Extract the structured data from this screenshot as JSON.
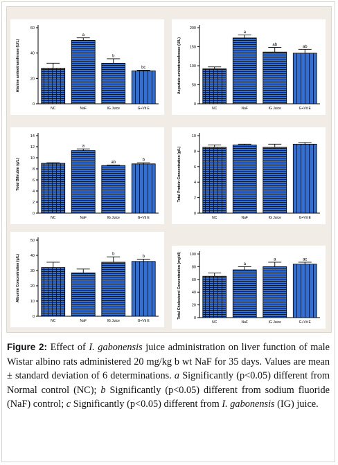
{
  "colors": {
    "bar_fill": "#2f6fd6",
    "bar_pattern": "#111111",
    "axis": "#000000"
  },
  "chart_data": [
    {
      "type": "bar",
      "categories": [
        "NC",
        "NaF",
        "IG Juice",
        "G+Vit E"
      ],
      "values": [
        28,
        50,
        32,
        26
      ],
      "errors": [
        4,
        2,
        3.5,
        0.5
      ],
      "markers": [
        "",
        "a",
        "b",
        "bc"
      ],
      "ylim": [
        0,
        60
      ],
      "yticks": [
        0,
        20,
        40,
        60
      ],
      "ylabel": "Alanine aminotransferase (U/L)",
      "xlabel": "",
      "title": ""
    },
    {
      "type": "bar",
      "categories": [
        "NC",
        "NaF",
        "IG Juice",
        "G+Vit E"
      ],
      "values": [
        92,
        173,
        136,
        133
      ],
      "errors": [
        5,
        8,
        12,
        10
      ],
      "markers": [
        "",
        "a",
        "ab",
        "ab"
      ],
      "ylim": [
        0,
        200
      ],
      "yticks": [
        0,
        50,
        100,
        150,
        200
      ],
      "ylabel": "Aspartate aminotransferase (U/L)",
      "xlabel": "",
      "title": ""
    },
    {
      "type": "bar",
      "categories": [
        "NC",
        "NaF",
        "IG Juice",
        "G+Vit E"
      ],
      "values": [
        9.0,
        11.3,
        8.6,
        8.9
      ],
      "errors": [
        0.1,
        0.3,
        0.1,
        0.2
      ],
      "markers": [
        "",
        "a",
        "ab",
        "b"
      ],
      "ylim": [
        0,
        14
      ],
      "yticks": [
        0,
        2,
        4,
        6,
        8,
        10,
        12,
        14
      ],
      "ylabel": "Total Bilirubin (g/L)",
      "xlabel": "",
      "title": ""
    },
    {
      "type": "bar",
      "categories": [
        "NC",
        "NaF",
        "IG Juice",
        "G+Vit E"
      ],
      "values": [
        8.5,
        8.8,
        8.5,
        8.9
      ],
      "errors": [
        0.3,
        0.1,
        0.4,
        0.2
      ],
      "markers": [
        "",
        "",
        "",
        ""
      ],
      "ylim": [
        0,
        10
      ],
      "yticks": [
        0,
        2,
        4,
        6,
        8,
        10
      ],
      "ylabel": "Total Protein Concentration (g/L)",
      "xlabel": "",
      "title": ""
    },
    {
      "type": "bar",
      "categories": [
        "NC",
        "NaF",
        "IG Juice",
        "G+Vit E"
      ],
      "values": [
        32,
        28.5,
        35.5,
        36
      ],
      "errors": [
        3.5,
        2.5,
        3.5,
        1.5
      ],
      "markers": [
        "",
        "",
        "b",
        "b"
      ],
      "ylim": [
        0,
        50
      ],
      "yticks": [
        0,
        10,
        20,
        30,
        40,
        50
      ],
      "ylabel": "Albumin Concentration (g/L)",
      "xlabel": "",
      "title": ""
    },
    {
      "type": "bar",
      "categories": [
        "NC",
        "NaF",
        "IG Juice",
        "G+Vit E"
      ],
      "values": [
        65,
        75,
        80,
        84
      ],
      "errors": [
        5,
        5,
        7,
        3
      ],
      "markers": [
        "",
        "a",
        "a",
        "ac"
      ],
      "ylim": [
        0,
        100
      ],
      "yticks": [
        0,
        20,
        40,
        60,
        80,
        100
      ],
      "ylabel": "Total Cholesterol Concentration (mg/dl)",
      "xlabel": "",
      "title": ""
    }
  ],
  "caption": {
    "label": "Figure 2:",
    "seg1": " Effect of ",
    "species": "I. gabonensis",
    "seg2": " juice administration on liver function of male Wistar albino rats administered 20 mg/kg b wt NaF for 35 days. Values are mean ± standard deviation of 6 determinations. ",
    "a_letter": "a",
    "seg3": " Significantly (p<0.05) different from Normal control (NC); ",
    "b_letter": "b",
    "seg4": " Significantly (p<0.05) different from sodium fluoride (NaF) control; ",
    "c_letter": "c",
    "seg5": " Significantly (p<0.05) different from ",
    "species2": "I. gabonensis",
    "seg6": " (IG) juice."
  }
}
